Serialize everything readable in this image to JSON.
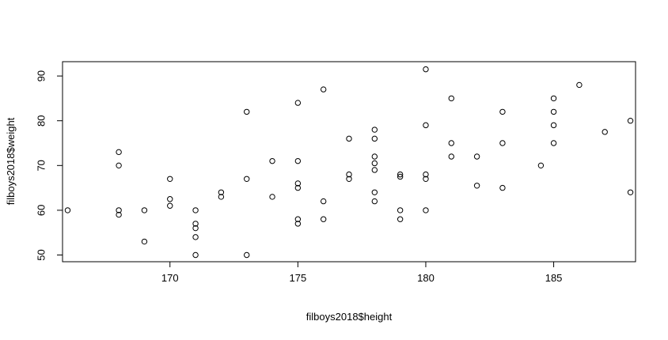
{
  "chart_data": {
    "type": "scatter",
    "title": "",
    "xlabel": "filboys2018$height",
    "ylabel": "filboys2018$weight",
    "xlim": [
      165.8,
      188.2
    ],
    "ylim": [
      48.5,
      93.2
    ],
    "xticks": [
      170,
      175,
      180,
      185
    ],
    "yticks": [
      50,
      60,
      70,
      80,
      90
    ],
    "xtick_labels": [
      "170",
      "175",
      "180",
      "185"
    ],
    "ytick_labels": [
      "50",
      "60",
      "70",
      "80",
      "90"
    ],
    "grid": false,
    "legend": "none",
    "marker": "open-circle",
    "points": [
      [
        166,
        60
      ],
      [
        168,
        73
      ],
      [
        168,
        70
      ],
      [
        168,
        60
      ],
      [
        168,
        59
      ],
      [
        169,
        60
      ],
      [
        169,
        53
      ],
      [
        170,
        67
      ],
      [
        170,
        62.5
      ],
      [
        170,
        61
      ],
      [
        171,
        60
      ],
      [
        171,
        57
      ],
      [
        171,
        56
      ],
      [
        171,
        54
      ],
      [
        171,
        50
      ],
      [
        172,
        64
      ],
      [
        172,
        63
      ],
      [
        173,
        82
      ],
      [
        173,
        67
      ],
      [
        173,
        50
      ],
      [
        174,
        71
      ],
      [
        174,
        63
      ],
      [
        175,
        84
      ],
      [
        175,
        71
      ],
      [
        175,
        66
      ],
      [
        175,
        65
      ],
      [
        175,
        58
      ],
      [
        175,
        57
      ],
      [
        176,
        87
      ],
      [
        176,
        62
      ],
      [
        176,
        58
      ],
      [
        177,
        76
      ],
      [
        177,
        68
      ],
      [
        177,
        67
      ],
      [
        178,
        78
      ],
      [
        178,
        76
      ],
      [
        178,
        72
      ],
      [
        178,
        70.5
      ],
      [
        178,
        69
      ],
      [
        178,
        64
      ],
      [
        178,
        62
      ],
      [
        179,
        68
      ],
      [
        179,
        67.5
      ],
      [
        179,
        60
      ],
      [
        179,
        58
      ],
      [
        180,
        91.5
      ],
      [
        180,
        79
      ],
      [
        180,
        68
      ],
      [
        180,
        67
      ],
      [
        180,
        60
      ],
      [
        181,
        85
      ],
      [
        181,
        75
      ],
      [
        181,
        72
      ],
      [
        182,
        72
      ],
      [
        182,
        65.5
      ],
      [
        183,
        82
      ],
      [
        183,
        75
      ],
      [
        183,
        65
      ],
      [
        184.5,
        70
      ],
      [
        185,
        85
      ],
      [
        185,
        82
      ],
      [
        185,
        79
      ],
      [
        185,
        75
      ],
      [
        186,
        88
      ],
      [
        187,
        77.5
      ],
      [
        188,
        80
      ],
      [
        188,
        64
      ]
    ]
  }
}
